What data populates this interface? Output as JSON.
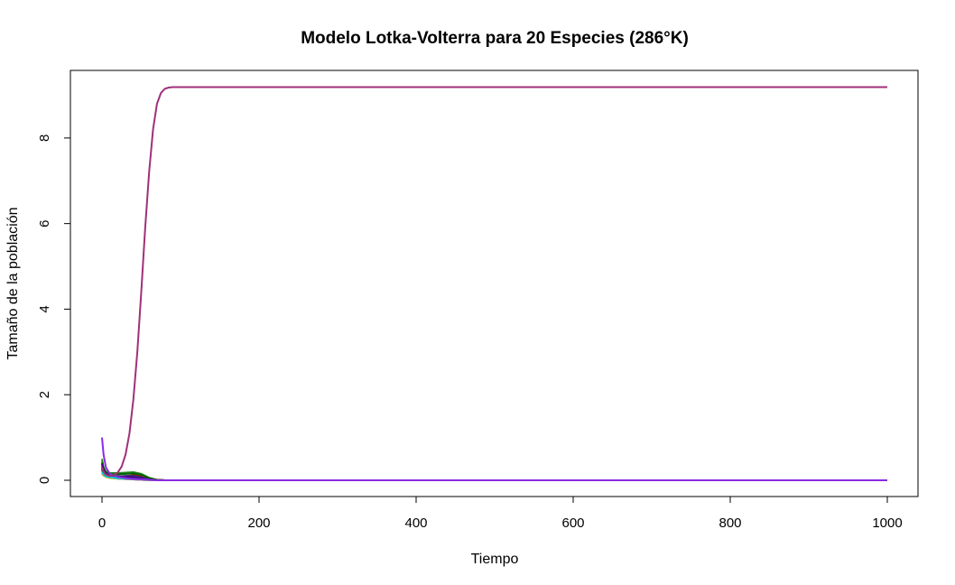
{
  "chart_data": {
    "type": "line",
    "title": "Modelo Lotka-Volterra para 20 Especies (286°K)",
    "xlabel": "Tiempo",
    "ylabel": "Tamaño de la población",
    "xlim": [
      0,
      1000
    ],
    "ylim": [
      0,
      9.2
    ],
    "x_ticks": [
      0,
      200,
      400,
      600,
      800,
      1000
    ],
    "y_ticks": [
      0,
      2,
      4,
      6,
      8
    ],
    "grid": false,
    "legend": "none",
    "series": [
      {
        "color": "#000000",
        "x": [
          0,
          2,
          5,
          10,
          20,
          30,
          40,
          50,
          60,
          70,
          80,
          100,
          1000
        ],
        "y": [
          0.15,
          0.12,
          0.09,
          0.06,
          0.04,
          0.03,
          0.02,
          0.01,
          0.005,
          0,
          0,
          0,
          0
        ]
      },
      {
        "color": "#DF536B",
        "x": [
          0,
          2,
          5,
          10,
          20,
          30,
          40,
          50,
          60,
          70,
          80,
          100,
          1000
        ],
        "y": [
          0.3,
          0.2,
          0.12,
          0.08,
          0.07,
          0.08,
          0.09,
          0.08,
          0.04,
          0.01,
          0,
          0,
          0
        ]
      },
      {
        "color": "#61D04F",
        "x": [
          0,
          2,
          5,
          10,
          20,
          30,
          40,
          50,
          60,
          70,
          80,
          100,
          1000
        ],
        "y": [
          0.45,
          0.3,
          0.2,
          0.15,
          0.14,
          0.16,
          0.17,
          0.12,
          0.05,
          0.01,
          0,
          0,
          0
        ]
      },
      {
        "color": "#2297E6",
        "x": [
          0,
          2,
          5,
          10,
          20,
          30,
          40,
          50,
          60,
          70,
          80,
          100,
          1000
        ],
        "y": [
          0.25,
          0.15,
          0.1,
          0.07,
          0.05,
          0.04,
          0.03,
          0.02,
          0.01,
          0,
          0,
          0,
          0
        ]
      },
      {
        "color": "#28E2E5",
        "x": [
          0,
          2,
          5,
          10,
          20,
          30,
          40,
          50,
          60,
          70,
          80,
          100,
          1000
        ],
        "y": [
          0.2,
          0.14,
          0.1,
          0.08,
          0.06,
          0.05,
          0.04,
          0.02,
          0.01,
          0,
          0,
          0,
          0
        ]
      },
      {
        "color": "#CD0BBC",
        "x": [
          0,
          2,
          5,
          10,
          20,
          30,
          40,
          50,
          60,
          70,
          80,
          100,
          1000
        ],
        "y": [
          0.35,
          0.22,
          0.14,
          0.1,
          0.08,
          0.06,
          0.05,
          0.03,
          0.01,
          0,
          0,
          0,
          0
        ]
      },
      {
        "color": "#F5C710",
        "x": [
          0,
          2,
          5,
          10,
          20,
          30,
          40,
          50,
          60,
          70,
          80,
          100,
          1000
        ],
        "y": [
          0.18,
          0.12,
          0.08,
          0.05,
          0.04,
          0.03,
          0.02,
          0.01,
          0,
          0,
          0,
          0,
          0
        ]
      },
      {
        "color": "#9E9E9E",
        "x": [
          0,
          2,
          5,
          10,
          20,
          30,
          40,
          50,
          60,
          70,
          80,
          100,
          1000
        ],
        "y": [
          0.22,
          0.14,
          0.09,
          0.06,
          0.04,
          0.03,
          0.02,
          0.01,
          0,
          0,
          0,
          0,
          0
        ]
      },
      {
        "color": "#228B22",
        "x": [
          0,
          2,
          5,
          10,
          20,
          30,
          40,
          50,
          60,
          70,
          80,
          100,
          1000
        ],
        "y": [
          0.5,
          0.3,
          0.2,
          0.17,
          0.17,
          0.18,
          0.19,
          0.15,
          0.06,
          0.01,
          0,
          0,
          0
        ]
      },
      {
        "color": "#CC0000",
        "x": [
          0,
          2,
          5,
          10,
          20,
          30,
          40,
          50,
          60,
          70,
          80,
          100,
          1000
        ],
        "y": [
          0.4,
          0.25,
          0.15,
          0.1,
          0.09,
          0.1,
          0.12,
          0.11,
          0.05,
          0.01,
          0,
          0,
          0
        ]
      },
      {
        "color": "#8B4513",
        "x": [
          0,
          2,
          5,
          10,
          20,
          30,
          40,
          50,
          60,
          70,
          80,
          100,
          1000
        ],
        "y": [
          0.28,
          0.18,
          0.12,
          0.09,
          0.07,
          0.06,
          0.05,
          0.03,
          0.01,
          0,
          0,
          0,
          0
        ]
      },
      {
        "color": "#1E3A8A",
        "x": [
          0,
          2,
          5,
          10,
          20,
          30,
          40,
          50,
          60,
          70,
          80,
          100,
          1000
        ],
        "y": [
          0.32,
          0.2,
          0.13,
          0.1,
          0.09,
          0.1,
          0.1,
          0.07,
          0.02,
          0,
          0,
          0,
          0
        ]
      },
      {
        "color": "#FF69B4",
        "x": [
          0,
          2,
          5,
          10,
          20,
          30,
          40,
          50,
          60,
          70,
          80,
          100,
          1000
        ],
        "y": [
          0.24,
          0.15,
          0.1,
          0.07,
          0.06,
          0.05,
          0.04,
          0.02,
          0.01,
          0,
          0,
          0,
          0
        ]
      },
      {
        "color": "#FFA500",
        "x": [
          0,
          2,
          5,
          10,
          20,
          30,
          40,
          50,
          60,
          70,
          80,
          100,
          1000
        ],
        "y": [
          0.16,
          0.11,
          0.08,
          0.06,
          0.05,
          0.04,
          0.03,
          0.02,
          0.01,
          0,
          0,
          0,
          0
        ]
      },
      {
        "color": "#006400",
        "x": [
          0,
          2,
          5,
          10,
          20,
          30,
          40,
          50,
          60,
          70,
          80,
          100,
          1000
        ],
        "y": [
          0.42,
          0.28,
          0.18,
          0.14,
          0.14,
          0.15,
          0.16,
          0.13,
          0.05,
          0.01,
          0,
          0,
          0
        ]
      },
      {
        "color": "#800000",
        "x": [
          0,
          2,
          5,
          10,
          20,
          30,
          40,
          50,
          60,
          70,
          80,
          100,
          1000
        ],
        "y": [
          0.26,
          0.16,
          0.11,
          0.08,
          0.07,
          0.07,
          0.07,
          0.05,
          0.02,
          0,
          0,
          0,
          0
        ]
      },
      {
        "color": "#4B0082",
        "x": [
          0,
          2,
          5,
          10,
          20,
          30,
          40,
          50,
          60,
          70,
          80,
          100,
          1000
        ],
        "y": [
          0.38,
          0.24,
          0.15,
          0.11,
          0.09,
          0.08,
          0.07,
          0.05,
          0.02,
          0,
          0,
          0,
          0
        ]
      },
      {
        "color": "#00CED1",
        "x": [
          0,
          2,
          5,
          10,
          20,
          30,
          40,
          50,
          60,
          70,
          80,
          100,
          1000
        ],
        "y": [
          0.2,
          0.13,
          0.09,
          0.07,
          0.05,
          0.04,
          0.03,
          0.02,
          0.01,
          0,
          0,
          0,
          0
        ]
      },
      {
        "color": "#8A2BE2",
        "x": [
          0,
          2,
          5,
          10,
          20,
          30,
          40,
          50,
          60,
          70,
          80,
          100,
          1000
        ],
        "y": [
          1.0,
          0.6,
          0.3,
          0.15,
          0.08,
          0.05,
          0.03,
          0.02,
          0.01,
          0,
          0,
          0,
          0
        ]
      },
      {
        "color": "#A0307A",
        "x": [
          0,
          2,
          5,
          10,
          15,
          20,
          25,
          30,
          35,
          40,
          45,
          50,
          55,
          60,
          65,
          70,
          75,
          80,
          85,
          90,
          100,
          200,
          400,
          600,
          800,
          1000
        ],
        "y": [
          0.3,
          0.2,
          0.13,
          0.1,
          0.12,
          0.18,
          0.32,
          0.6,
          1.1,
          1.9,
          3.0,
          4.4,
          5.9,
          7.2,
          8.2,
          8.8,
          9.05,
          9.15,
          9.18,
          9.19,
          9.19,
          9.19,
          9.19,
          9.19,
          9.19,
          9.19
        ]
      }
    ]
  }
}
